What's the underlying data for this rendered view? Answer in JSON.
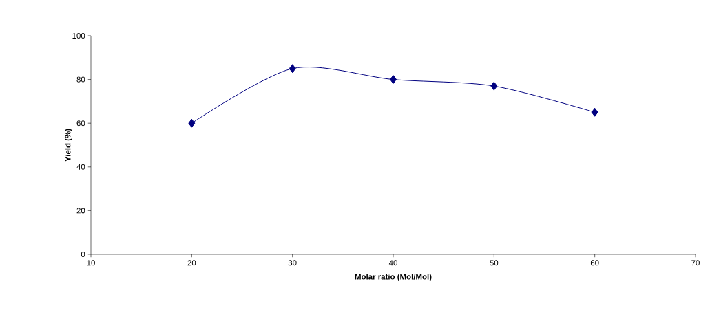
{
  "chart_data": {
    "type": "line",
    "xlabel": "Molar ratio (Mol/Mol)",
    "ylabel": "Yield (%)",
    "x": [
      20,
      30,
      40,
      50,
      60
    ],
    "series": [
      {
        "color": "#000080",
        "values": [
          60,
          85,
          80,
          77,
          65
        ]
      }
    ],
    "xlim": [
      10,
      70
    ],
    "xticks": [
      10,
      20,
      30,
      40,
      50,
      60,
      70
    ],
    "ylim": [
      0,
      100
    ],
    "yticks": [
      0,
      20,
      40,
      60,
      80,
      100
    ],
    "marker": "diamond",
    "line_style": "solid",
    "grid": false
  }
}
